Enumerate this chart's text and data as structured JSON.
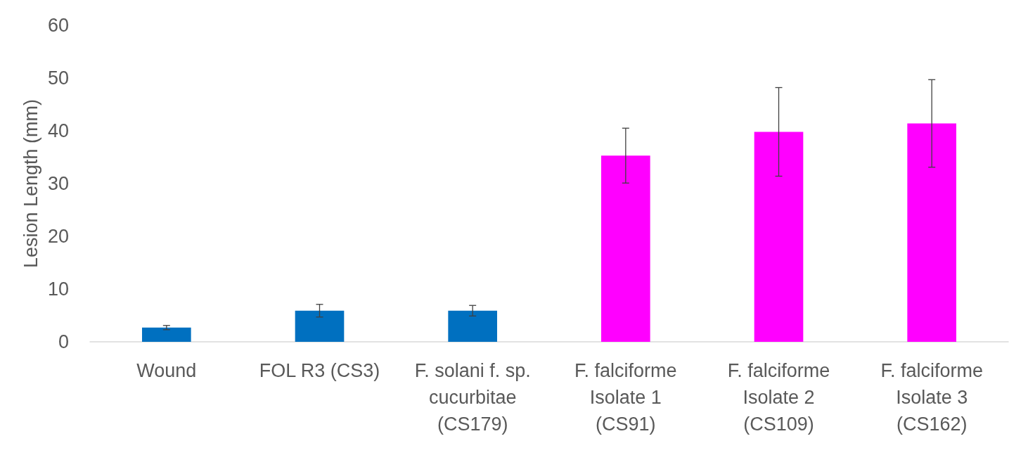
{
  "chart_data": {
    "type": "bar",
    "ylabel": "Lesion Length (mm)",
    "categories": [
      "Wound",
      "FOL R3 (CS3)",
      "F. solani f. sp.\ncucurbitae\n(CS179)",
      "F. falciforme\nIsolate 1\n(CS91)",
      "F. falciforme\nIsolate 2\n(CS109)",
      "F. falciforme\nIsolate 3\n(CS162)"
    ],
    "values": [
      2.7,
      5.9,
      5.9,
      35.3,
      39.8,
      41.4
    ],
    "errors": [
      0.4,
      1.2,
      1.0,
      5.2,
      8.4,
      8.3
    ],
    "colors": [
      "#0070c0",
      "#0070c0",
      "#0070c0",
      "#ff00ff",
      "#ff00ff",
      "#ff00ff"
    ],
    "ylim": [
      0,
      60
    ],
    "yticks": [
      0,
      10,
      20,
      30,
      40,
      50,
      60
    ],
    "grid": false
  }
}
